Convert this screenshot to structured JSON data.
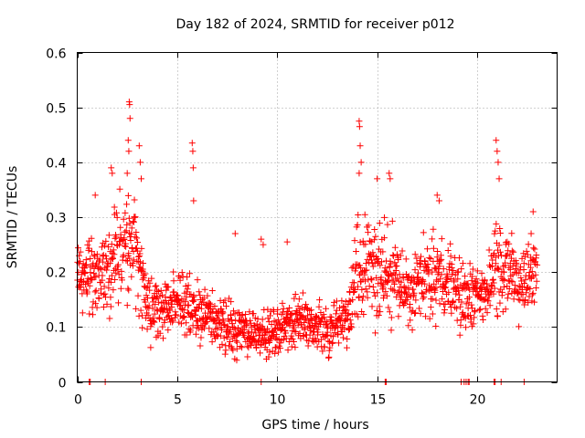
{
  "colors": {
    "series": "#ff0000",
    "axis": "#000000",
    "grid": "#a0a0a0",
    "background": "#ffffff"
  },
  "chart_data": {
    "type": "scatter",
    "marker": "plus",
    "title": "Day 182 of 2024, SRMTID for receiver p012",
    "xlabel": "GPS time / hours",
    "ylabel": "SRMTID / TECUs",
    "xlim": [
      0,
      24
    ],
    "ylim": [
      0,
      0.6
    ],
    "xticks": [
      0,
      5,
      10,
      15,
      20
    ],
    "xtick_labels": [
      "0",
      "5",
      "10",
      "15",
      "20"
    ],
    "yticks": [
      0,
      0.1,
      0.2,
      0.3,
      0.4,
      0.5,
      0.6
    ],
    "ytick_labels": [
      "0",
      "0.1",
      "0.2",
      "0.3",
      "0.4",
      "0.5",
      "0.6"
    ],
    "grid": true,
    "legend": "none",
    "series": [
      {
        "name": "SRMTID p012",
        "envelope_x": [
          0,
          0.5,
          1,
          1.5,
          2,
          2.5,
          3,
          3.5,
          4,
          4.5,
          5,
          5.5,
          6,
          6.5,
          7,
          7.5,
          8,
          8.5,
          9,
          9.5,
          10,
          10.5,
          11,
          11.5,
          12,
          12.5,
          13,
          13.5,
          14,
          14.5,
          15,
          15.5,
          16,
          16.5,
          17,
          17.5,
          18,
          18.5,
          19,
          19.5,
          20,
          20.5,
          21,
          21.5,
          22,
          22.5,
          23
        ],
        "envelope_center": [
          0.2,
          0.19,
          0.2,
          0.19,
          0.24,
          0.26,
          0.23,
          0.14,
          0.13,
          0.14,
          0.13,
          0.14,
          0.13,
          0.12,
          0.11,
          0.1,
          0.09,
          0.09,
          0.09,
          0.085,
          0.09,
          0.1,
          0.11,
          0.11,
          0.1,
          0.09,
          0.1,
          0.12,
          0.2,
          0.22,
          0.2,
          0.2,
          0.19,
          0.17,
          0.18,
          0.19,
          0.2,
          0.18,
          0.16,
          0.15,
          0.16,
          0.17,
          0.22,
          0.2,
          0.17,
          0.18,
          0.22
        ],
        "envelope_spread": [
          0.05,
          0.06,
          0.07,
          0.07,
          0.08,
          0.09,
          0.09,
          0.05,
          0.05,
          0.05,
          0.06,
          0.06,
          0.05,
          0.05,
          0.05,
          0.045,
          0.04,
          0.04,
          0.04,
          0.04,
          0.04,
          0.04,
          0.04,
          0.04,
          0.04,
          0.04,
          0.04,
          0.05,
          0.08,
          0.08,
          0.08,
          0.08,
          0.07,
          0.06,
          0.06,
          0.07,
          0.07,
          0.06,
          0.06,
          0.05,
          0.05,
          0.05,
          0.09,
          0.07,
          0.05,
          0.05,
          0.06
        ],
        "samples_per_hour": 70,
        "spikes": [
          {
            "x": 2.6,
            "y": 0.51
          },
          {
            "x": 2.62,
            "y": 0.505
          },
          {
            "x": 2.64,
            "y": 0.48
          },
          {
            "x": 2.55,
            "y": 0.44
          },
          {
            "x": 2.58,
            "y": 0.42
          },
          {
            "x": 2.5,
            "y": 0.38
          },
          {
            "x": 3.1,
            "y": 0.43
          },
          {
            "x": 3.15,
            "y": 0.4
          },
          {
            "x": 3.2,
            "y": 0.37
          },
          {
            "x": 1.7,
            "y": 0.39
          },
          {
            "x": 1.75,
            "y": 0.38
          },
          {
            "x": 0.9,
            "y": 0.34
          },
          {
            "x": 5.75,
            "y": 0.435
          },
          {
            "x": 5.78,
            "y": 0.42
          },
          {
            "x": 5.8,
            "y": 0.39
          },
          {
            "x": 5.82,
            "y": 0.33
          },
          {
            "x": 7.9,
            "y": 0.27
          },
          {
            "x": 9.2,
            "y": 0.26
          },
          {
            "x": 9.3,
            "y": 0.25
          },
          {
            "x": 10.5,
            "y": 0.255
          },
          {
            "x": 14.1,
            "y": 0.475
          },
          {
            "x": 14.12,
            "y": 0.465
          },
          {
            "x": 14.15,
            "y": 0.43
          },
          {
            "x": 14.2,
            "y": 0.4
          },
          {
            "x": 14.1,
            "y": 0.38
          },
          {
            "x": 15.6,
            "y": 0.38
          },
          {
            "x": 15.65,
            "y": 0.37
          },
          {
            "x": 15.0,
            "y": 0.37
          },
          {
            "x": 18.0,
            "y": 0.34
          },
          {
            "x": 18.1,
            "y": 0.33
          },
          {
            "x": 20.95,
            "y": 0.44
          },
          {
            "x": 21.0,
            "y": 0.42
          },
          {
            "x": 21.05,
            "y": 0.4
          },
          {
            "x": 21.1,
            "y": 0.37
          },
          {
            "x": 22.8,
            "y": 0.31
          },
          {
            "x": 22.7,
            "y": 0.27
          }
        ],
        "baseline_x": [
          0.6,
          0.65,
          1.4,
          3.2,
          9.2,
          15.4,
          15.45,
          19.2,
          19.35,
          19.45,
          19.55,
          19.6,
          20.85,
          20.9,
          21.2,
          22.35
        ]
      }
    ]
  }
}
